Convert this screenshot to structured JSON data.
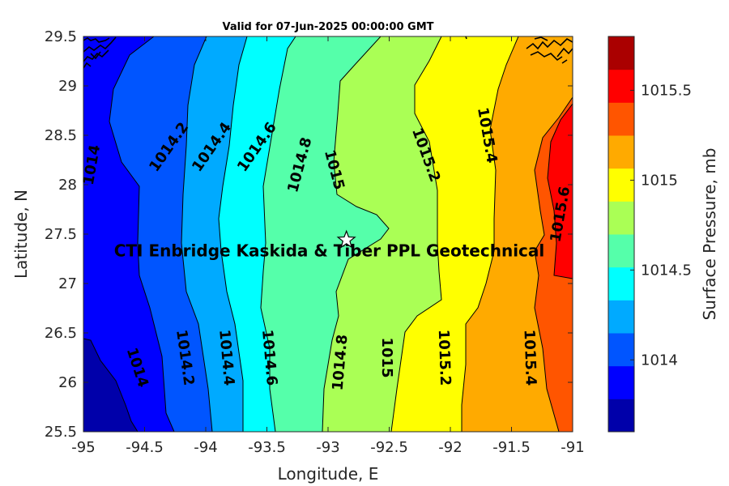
{
  "chart_data": {
    "type": "heatmap",
    "title": "Valid for 07-Jun-2025 00:00:00 GMT",
    "xlabel": "Longitude, E",
    "ylabel": "Latitude, N",
    "xlim": [
      -95,
      -91
    ],
    "ylim": [
      25.5,
      29.5
    ],
    "x_ticks": [
      "-95",
      "-94.5",
      "-94",
      "-93.5",
      "-93",
      "-92.5",
      "-92",
      "-91.5",
      "-91"
    ],
    "y_ticks": [
      "25.5",
      "26",
      "26.5",
      "27",
      "27.5",
      "28",
      "28.5",
      "29",
      "29.5"
    ],
    "colorbar": {
      "label": "Surface Pressure, mb",
      "range": [
        1013.6,
        1015.8
      ],
      "step": 0.1,
      "ticks": [
        "1014",
        "1014.5",
        "1015",
        "1015.5"
      ],
      "levels_low_to_high": [
        "#0000aa",
        "#0000ff",
        "#0055ff",
        "#00aaff",
        "#00ffff",
        "#55ffaa",
        "#aaff55",
        "#ffff00",
        "#ffaa00",
        "#ff5500",
        "#ff0000",
        "#aa0000"
      ]
    },
    "contour_levels": [
      1014,
      1014.2,
      1014.4,
      1014.6,
      1014.8,
      1015,
      1015.2,
      1015.4,
      1015.6
    ],
    "contour_labels": [
      {
        "text": "1014",
        "lon": -94.93,
        "lat": 28.2,
        "angle": -80
      },
      {
        "text": "1014.2",
        "lon": -94.3,
        "lat": 28.38,
        "angle": -55
      },
      {
        "text": "1014.4",
        "lon": -93.95,
        "lat": 28.38,
        "angle": -55
      },
      {
        "text": "1014.6",
        "lon": -93.58,
        "lat": 28.38,
        "angle": -55
      },
      {
        "text": "1014.8",
        "lon": -93.23,
        "lat": 28.2,
        "angle": -75
      },
      {
        "text": "1015",
        "lon": -92.95,
        "lat": 28.15,
        "angle": 75
      },
      {
        "text": "1015.2",
        "lon": -92.2,
        "lat": 28.3,
        "angle": 70
      },
      {
        "text": "1015.4",
        "lon": -91.7,
        "lat": 28.5,
        "angle": 80
      },
      {
        "text": "1015.6",
        "lon": -91.1,
        "lat": 27.7,
        "angle": -80
      },
      {
        "text": "1014",
        "lon": -94.56,
        "lat": 26.15,
        "angle": 72
      },
      {
        "text": "1014.2",
        "lon": -94.17,
        "lat": 26.25,
        "angle": 82
      },
      {
        "text": "1014.4",
        "lon": -93.83,
        "lat": 26.25,
        "angle": 85
      },
      {
        "text": "1014.6",
        "lon": -93.48,
        "lat": 26.25,
        "angle": 85
      },
      {
        "text": "1014.8",
        "lon": -92.9,
        "lat": 26.2,
        "angle": -85
      },
      {
        "text": "1015",
        "lon": -92.52,
        "lat": 26.25,
        "angle": 90
      },
      {
        "text": "1015.2",
        "lon": -92.05,
        "lat": 26.25,
        "angle": 88
      },
      {
        "text": "1015.4",
        "lon": -91.35,
        "lat": 26.25,
        "angle": 88
      }
    ],
    "annotation": {
      "text": "CTI Enbridge  Kaskida & Tiber PPL Geotechnical",
      "lon": -92.99,
      "lat": 27.33
    },
    "site_marker": {
      "symbol": "star",
      "lon": -92.85,
      "lat": 27.44
    }
  }
}
